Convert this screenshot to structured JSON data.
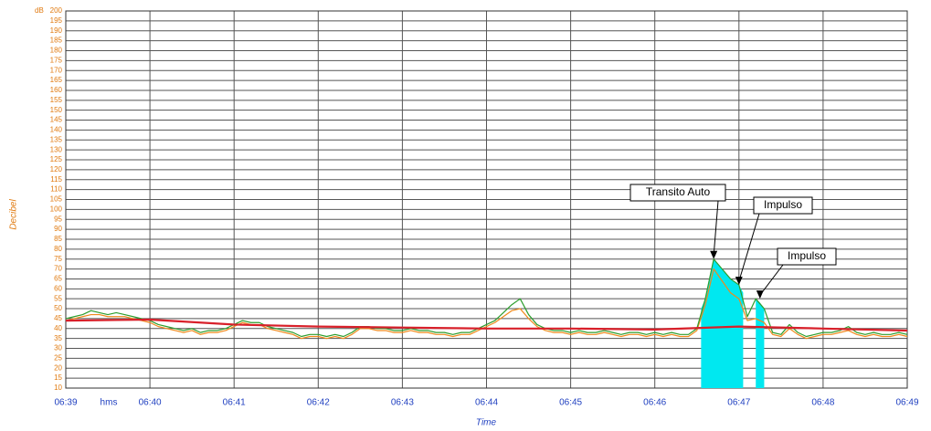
{
  "chart_data": {
    "type": "line",
    "ylabel": "Decibel",
    "xlabel": "Time",
    "xunit": "hms",
    "yunit": "dB",
    "xlim": [
      0,
      10
    ],
    "xticks": [
      {
        "value": 0,
        "label": "06:39"
      },
      {
        "value": 1,
        "label": "06:40"
      },
      {
        "value": 2,
        "label": "06:41"
      },
      {
        "value": 3,
        "label": "06:42"
      },
      {
        "value": 4,
        "label": "06:43"
      },
      {
        "value": 5,
        "label": "06:44"
      },
      {
        "value": 6,
        "label": "06:45"
      },
      {
        "value": 7,
        "label": "06:46"
      },
      {
        "value": 8,
        "label": "06:47"
      },
      {
        "value": 9,
        "label": "06:48"
      },
      {
        "value": 10,
        "label": "06:49"
      }
    ],
    "ylim": [
      10,
      200
    ],
    "yticks": [
      10,
      15,
      20,
      25,
      30,
      35,
      40,
      45,
      50,
      55,
      60,
      65,
      70,
      75,
      80,
      85,
      90,
      95,
      100,
      105,
      110,
      115,
      120,
      125,
      130,
      135,
      140,
      145,
      150,
      155,
      160,
      165,
      170,
      175,
      180,
      185,
      190,
      195,
      200
    ],
    "grid": true,
    "x": [
      0,
      0.1,
      0.2,
      0.3,
      0.4,
      0.5,
      0.6,
      0.7,
      0.8,
      0.9,
      1,
      1.1,
      1.2,
      1.3,
      1.4,
      1.5,
      1.6,
      1.7,
      1.8,
      1.9,
      2,
      2.1,
      2.2,
      2.3,
      2.4,
      2.5,
      2.6,
      2.7,
      2.8,
      2.9,
      3,
      3.1,
      3.2,
      3.3,
      3.4,
      3.5,
      3.6,
      3.7,
      3.8,
      3.9,
      4,
      4.1,
      4.2,
      4.3,
      4.4,
      4.5,
      4.6,
      4.7,
      4.8,
      4.9,
      5,
      5.1,
      5.2,
      5.3,
      5.4,
      5.5,
      5.6,
      5.7,
      5.8,
      5.9,
      6,
      6.1,
      6.2,
      6.3,
      6.4,
      6.5,
      6.6,
      6.7,
      6.8,
      6.9,
      7,
      7.1,
      7.2,
      7.3,
      7.4,
      7.5,
      7.6,
      7.7,
      7.8,
      7.9,
      8,
      8.1,
      8.2,
      8.3,
      8.4,
      8.5,
      8.6,
      8.7,
      8.8,
      8.9,
      9,
      9.1,
      9.2,
      9.3,
      9.4,
      9.5,
      9.6,
      9.7,
      9.8,
      9.9,
      10
    ],
    "series": [
      {
        "kind": "area",
        "color": "#00e8f0",
        "x": [
          7.55,
          7.6,
          7.7,
          7.8,
          7.9,
          8.0,
          8.05,
          8.1,
          8.2,
          8.25,
          8.3
        ],
        "values": [
          50,
          55,
          75,
          70,
          65,
          62,
          58,
          null,
          55,
          53,
          50
        ]
      },
      {
        "kind": "line",
        "color": "#f08a1c",
        "values": [
          44,
          45,
          46,
          47,
          47,
          46,
          46,
          46,
          45,
          44,
          43,
          41,
          40,
          39,
          38,
          39,
          37,
          38,
          38,
          39,
          41,
          43,
          42,
          42,
          40,
          39,
          38,
          37,
          35,
          36,
          36,
          35,
          36,
          35,
          37,
          40,
          40,
          39,
          39,
          38,
          38,
          39,
          38,
          38,
          37,
          37,
          36,
          37,
          37,
          39,
          41,
          43,
          46,
          49,
          50,
          45,
          41,
          39,
          38,
          38,
          37,
          38,
          37,
          37,
          38,
          37,
          36,
          37,
          37,
          36,
          37,
          36,
          37,
          36,
          36,
          39,
          52,
          70,
          64,
          58,
          55,
          44,
          45,
          43,
          37,
          36,
          40,
          37,
          35,
          36,
          37,
          37,
          38,
          39,
          37,
          36,
          37,
          36,
          36,
          37,
          36
        ]
      },
      {
        "kind": "line",
        "color": "#2e9e2e",
        "values": [
          45,
          46,
          47,
          49,
          48,
          47,
          48,
          47,
          46,
          45,
          44,
          42,
          41,
          40,
          39,
          40,
          38,
          39,
          39,
          40,
          42,
          44,
          43,
          43,
          41,
          40,
          39,
          38,
          36,
          37,
          37,
          36,
          37,
          36,
          38,
          41,
          41,
          40,
          40,
          39,
          39,
          40,
          39,
          39,
          38,
          38,
          37,
          38,
          38,
          40,
          42,
          44,
          48,
          52,
          55,
          47,
          42,
          40,
          39,
          39,
          38,
          39,
          38,
          38,
          39,
          38,
          37,
          38,
          38,
          37,
          38,
          37,
          38,
          37,
          37,
          40,
          55,
          75,
          70,
          65,
          62,
          46,
          55,
          50,
          38,
          37,
          42,
          38,
          36,
          37,
          38,
          38,
          39,
          41,
          38,
          37,
          38,
          37,
          37,
          38,
          37
        ]
      },
      {
        "kind": "line",
        "color": "#d8202a",
        "x": [
          0,
          1,
          2,
          3,
          4,
          5,
          6,
          7,
          8,
          9,
          10
        ],
        "values": [
          44,
          44.5,
          42,
          41,
          40.5,
          40,
          40,
          39.5,
          41,
          40,
          39
        ]
      }
    ],
    "annotations": [
      {
        "text": "Transito Auto",
        "x": 7.7,
        "y": 75
      },
      {
        "text": "Impulso",
        "x": 8.0,
        "y": 62
      },
      {
        "text": "Impulso",
        "x": 8.25,
        "y": 55
      }
    ]
  }
}
